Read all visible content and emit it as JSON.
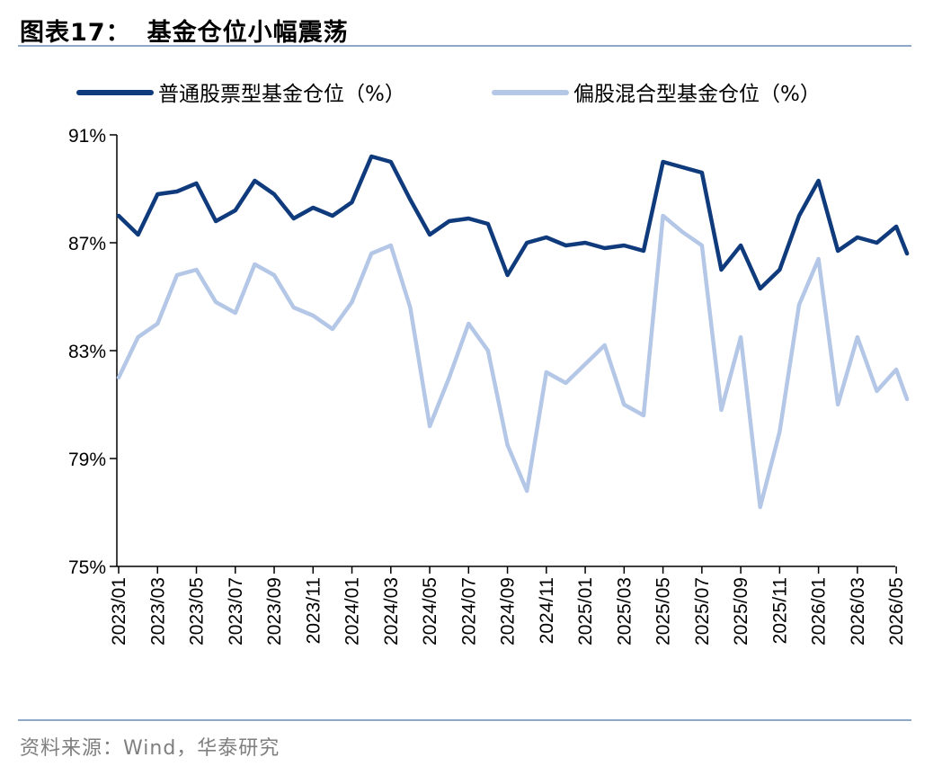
{
  "header": {
    "figure_number": "图表17：",
    "title": "基金仓位小幅震荡"
  },
  "footer": {
    "source": "资料来源：Wind，华泰研究"
  },
  "colors": {
    "stock_fund": "#0f3b7c",
    "hybrid_fund": "#b4c7e7",
    "rule": "#8ea9c8"
  },
  "chart_data": {
    "type": "line",
    "title": "基金仓位小幅震荡",
    "xlabel": "",
    "ylabel": "",
    "ylim": [
      75,
      91
    ],
    "yticks": [
      "75%",
      "79%",
      "83%",
      "87%",
      "91%"
    ],
    "ytick_values": [
      75,
      79,
      83,
      87,
      91
    ],
    "xticks": [
      "2023/01",
      "2023/03",
      "2023/05",
      "2023/07",
      "2023/09",
      "2023/11",
      "2024/01",
      "2024/03",
      "2024/05",
      "2024/07",
      "2024/09",
      "2024/11",
      "2025/01",
      "2025/03",
      "2025/05",
      "2025/07",
      "2025/09",
      "2025/11",
      "2026/01",
      "2026/03",
      "2026/05"
    ],
    "legend_position": "top",
    "grid": false,
    "series": [
      {
        "name": "普通股票型基金仓位（%）",
        "color": "#0f3b7c",
        "points": [
          [
            "2023/01",
            88.0
          ],
          [
            "2023/02",
            87.3
          ],
          [
            "2023/03",
            88.8
          ],
          [
            "2023/04",
            88.9
          ],
          [
            "2023/05",
            89.2
          ],
          [
            "2023/06",
            87.8
          ],
          [
            "2023/07",
            88.2
          ],
          [
            "2023/08",
            89.3
          ],
          [
            "2023/09",
            88.8
          ],
          [
            "2023/10",
            87.9
          ],
          [
            "2023/11",
            88.3
          ],
          [
            "2023/12",
            88.0
          ],
          [
            "2024/01",
            88.5
          ],
          [
            "2024/02",
            90.2
          ],
          [
            "2024/03",
            90.0
          ],
          [
            "2024/04",
            88.6
          ],
          [
            "2024/05",
            87.3
          ],
          [
            "2024/06",
            87.8
          ],
          [
            "2024/07",
            87.9
          ],
          [
            "2024/08",
            87.7
          ],
          [
            "2024/09",
            85.8
          ],
          [
            "2024/10",
            87.0
          ],
          [
            "2024/11",
            87.2
          ],
          [
            "2024/12",
            86.9
          ],
          [
            "2025/01",
            87.0
          ],
          [
            "2025/02",
            86.8
          ],
          [
            "2025/03",
            86.9
          ],
          [
            "2025/04",
            86.7
          ],
          [
            "2025/05",
            90.0
          ],
          [
            "2025/06",
            89.8
          ],
          [
            "2025/07",
            89.6
          ],
          [
            "2025/08",
            86.0
          ],
          [
            "2025/09",
            86.9
          ],
          [
            "2025/10",
            85.3
          ],
          [
            "2025/11",
            86.0
          ],
          [
            "2025/12",
            88.0
          ],
          [
            "2026/01",
            89.3
          ],
          [
            "2026/02",
            86.7
          ],
          [
            "2026/03",
            87.2
          ],
          [
            "2026/04",
            87.0
          ],
          [
            "2026/05",
            87.6
          ],
          [
            "2026/05",
            86.6
          ]
        ]
      },
      {
        "name": "偏股混合型基金仓位（%）",
        "color": "#b4c7e7",
        "points": [
          [
            "2023/01",
            82.0
          ],
          [
            "2023/02",
            83.5
          ],
          [
            "2023/03",
            84.0
          ],
          [
            "2023/04",
            85.8
          ],
          [
            "2023/05",
            86.0
          ],
          [
            "2023/06",
            84.8
          ],
          [
            "2023/07",
            84.4
          ],
          [
            "2023/08",
            86.2
          ],
          [
            "2023/09",
            85.8
          ],
          [
            "2023/10",
            84.6
          ],
          [
            "2023/11",
            84.3
          ],
          [
            "2023/12",
            83.8
          ],
          [
            "2024/01",
            84.8
          ],
          [
            "2024/02",
            86.6
          ],
          [
            "2024/03",
            86.9
          ],
          [
            "2024/04",
            84.6
          ],
          [
            "2024/05",
            80.2
          ],
          [
            "2024/06",
            82.0
          ],
          [
            "2024/07",
            84.0
          ],
          [
            "2024/08",
            83.0
          ],
          [
            "2024/09",
            79.5
          ],
          [
            "2024/10",
            77.8
          ],
          [
            "2024/11",
            82.2
          ],
          [
            "2024/12",
            81.8
          ],
          [
            "2025/01",
            82.5
          ],
          [
            "2025/02",
            83.2
          ],
          [
            "2025/03",
            81.0
          ],
          [
            "2025/04",
            80.6
          ],
          [
            "2025/05",
            88.0
          ],
          [
            "2025/06",
            87.4
          ],
          [
            "2025/07",
            86.9
          ],
          [
            "2025/08",
            80.8
          ],
          [
            "2025/09",
            83.5
          ],
          [
            "2025/10",
            77.2
          ],
          [
            "2025/11",
            80.0
          ],
          [
            "2025/12",
            84.7
          ],
          [
            "2026/01",
            86.4
          ],
          [
            "2026/02",
            81.0
          ],
          [
            "2026/03",
            83.5
          ],
          [
            "2026/04",
            81.5
          ],
          [
            "2026/05",
            82.3
          ],
          [
            "2026/05",
            81.2
          ]
        ]
      }
    ]
  }
}
